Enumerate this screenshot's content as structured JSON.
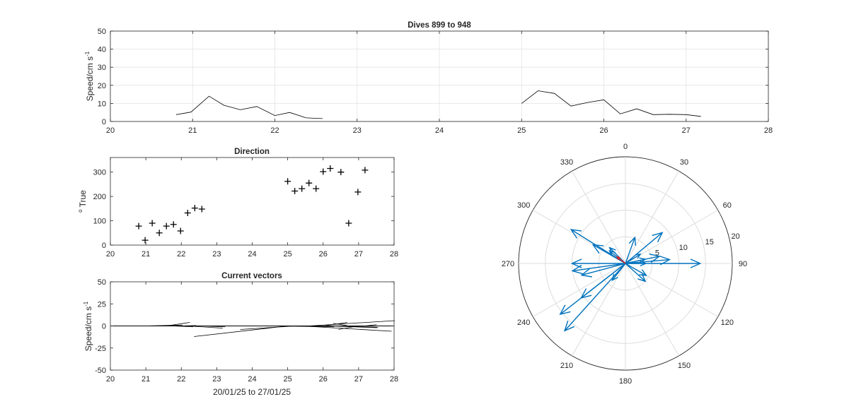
{
  "figure": {
    "xlabel_bottom": "20/01/25 to 27/01/25"
  },
  "chart_data": [
    {
      "type": "line",
      "title": "Dives 899 to 948",
      "ylabel": "Speed/cm s",
      "ylabel_sup": "-1",
      "xlim": [
        20,
        28
      ],
      "ylim": [
        0,
        50
      ],
      "xticks": [
        20,
        21,
        22,
        23,
        24,
        25,
        26,
        27,
        28
      ],
      "yticks": [
        0,
        10,
        20,
        30,
        40,
        50
      ],
      "grid": true,
      "line_color": "#000000",
      "segments": [
        {
          "x": [
            20.8,
            20.98,
            21.2,
            21.38,
            21.58,
            21.78,
            22.0,
            22.18,
            22.38,
            22.58
          ],
          "y": [
            3.8,
            5.2,
            14.0,
            9.0,
            6.5,
            8.3,
            3.3,
            5.0,
            2.0,
            1.6
          ]
        },
        {
          "x": [
            25.0,
            25.2,
            25.4,
            25.6,
            25.8,
            26.0,
            26.2,
            26.4,
            26.6,
            26.8,
            27.0,
            27.18
          ],
          "y": [
            10.0,
            17.0,
            15.5,
            8.5,
            10.5,
            12.0,
            4.2,
            7.0,
            3.8,
            4.0,
            3.8,
            2.8
          ]
        }
      ]
    },
    {
      "type": "scatter",
      "title": "Direction",
      "ylabel": "True",
      "ylabel_prefix": "o",
      "xlim": [
        20,
        28
      ],
      "ylim": [
        0,
        360
      ],
      "xticks": [
        20,
        21,
        22,
        23,
        24,
        25,
        26,
        27,
        28
      ],
      "yticks": [
        0,
        100,
        200,
        300
      ],
      "grid": false,
      "marker": "+",
      "marker_color": "#000000",
      "x": [
        20.8,
        20.98,
        21.18,
        21.38,
        21.58,
        21.78,
        21.98,
        22.18,
        22.38,
        22.58,
        25.0,
        25.2,
        25.4,
        25.6,
        25.8,
        26.0,
        26.2,
        26.5,
        26.72,
        26.98,
        27.18
      ],
      "y": [
        78,
        20,
        90,
        50,
        78,
        85,
        58,
        132,
        152,
        148,
        262,
        222,
        232,
        255,
        232,
        302,
        315,
        300,
        90,
        218,
        308
      ]
    },
    {
      "type": "line",
      "title": "Current vectors",
      "ylabel": "Speed/cm s",
      "ylabel_sup": "-1",
      "xlabel": "20/01/25 to 27/01/25",
      "xlim": [
        20,
        28
      ],
      "ylim": [
        -50,
        50
      ],
      "xticks": [
        20,
        21,
        22,
        23,
        24,
        25,
        26,
        27,
        28
      ],
      "yticks": [
        -50,
        -25,
        0,
        25,
        50
      ],
      "grid": false,
      "vector_color": "#000000",
      "vectors": [
        {
          "t": 20.98,
          "u": 4.8,
          "v": 1.0
        },
        {
          "t": 21.58,
          "u": 3.0,
          "v": 4.0
        },
        {
          "t": 21.78,
          "u": 2.5,
          "v": -1.0
        },
        {
          "t": 21.98,
          "u": 2.0,
          "v": 0.5
        },
        {
          "t": 22.18,
          "u": 4.5,
          "v": -2.5
        },
        {
          "t": 22.58,
          "u": 3.0,
          "v": -1.0
        },
        {
          "t": 24.55,
          "u": 8.0,
          "v": -1.0
        },
        {
          "t": 25.0,
          "u": -12.0,
          "v": -12.0
        },
        {
          "t": 25.2,
          "u": -7.0,
          "v": -4.0
        },
        {
          "t": 25.4,
          "u": 11.5,
          "v": -6.0
        },
        {
          "t": 25.6,
          "u": 11.0,
          "v": 6.0
        },
        {
          "t": 26.02,
          "u": 3.0,
          "v": 4.0
        },
        {
          "t": 26.2,
          "u": 6.0,
          "v": -2.0
        },
        {
          "t": 26.45,
          "u": 5.0,
          "v": -1.5
        },
        {
          "t": 26.72,
          "u": -2.0,
          "v": 3.0
        },
        {
          "t": 26.98,
          "u": -2.5,
          "v": -4.0
        },
        {
          "t": 27.18,
          "u": 1.5,
          "v": 1.5
        }
      ]
    },
    {
      "type": "scatter",
      "polar": true,
      "title": "",
      "theta_ticks": [
        0,
        30,
        60,
        90,
        120,
        150,
        180,
        210,
        240,
        270,
        300,
        330
      ],
      "r_ticks": [
        5,
        10,
        15,
        20
      ],
      "rlim": [
        0,
        20
      ],
      "theta_direction": "clockwise",
      "theta_zero": "top",
      "arrow_color": "#0072bd",
      "highlight_color": "#d62728",
      "arrows": [
        {
          "theta": 78,
          "r": 3.8
        },
        {
          "theta": 20,
          "r": 5.2
        },
        {
          "theta": 90,
          "r": 14.0
        },
        {
          "theta": 50,
          "r": 9.0
        },
        {
          "theta": 78,
          "r": 6.5
        },
        {
          "theta": 85,
          "r": 8.3
        },
        {
          "theta": 58,
          "r": 3.3
        },
        {
          "theta": 132,
          "r": 5.0
        },
        {
          "theta": 262,
          "r": 10.0
        },
        {
          "theta": 222,
          "r": 17.0
        },
        {
          "theta": 232,
          "r": 15.5
        },
        {
          "theta": 255,
          "r": 8.5
        },
        {
          "theta": 232,
          "r": 10.5
        },
        {
          "theta": 302,
          "r": 12.0
        },
        {
          "theta": 315,
          "r": 4.2
        },
        {
          "theta": 300,
          "r": 7.0
        },
        {
          "theta": 90,
          "r": 3.8
        },
        {
          "theta": 218,
          "r": 4.0
        },
        {
          "theta": 308,
          "r": 3.8
        },
        {
          "theta": 270,
          "r": 10.0
        },
        {
          "theta": 120,
          "r": 4.5
        }
      ],
      "highlight": {
        "theta": 308,
        "r": 2.0
      }
    }
  ]
}
